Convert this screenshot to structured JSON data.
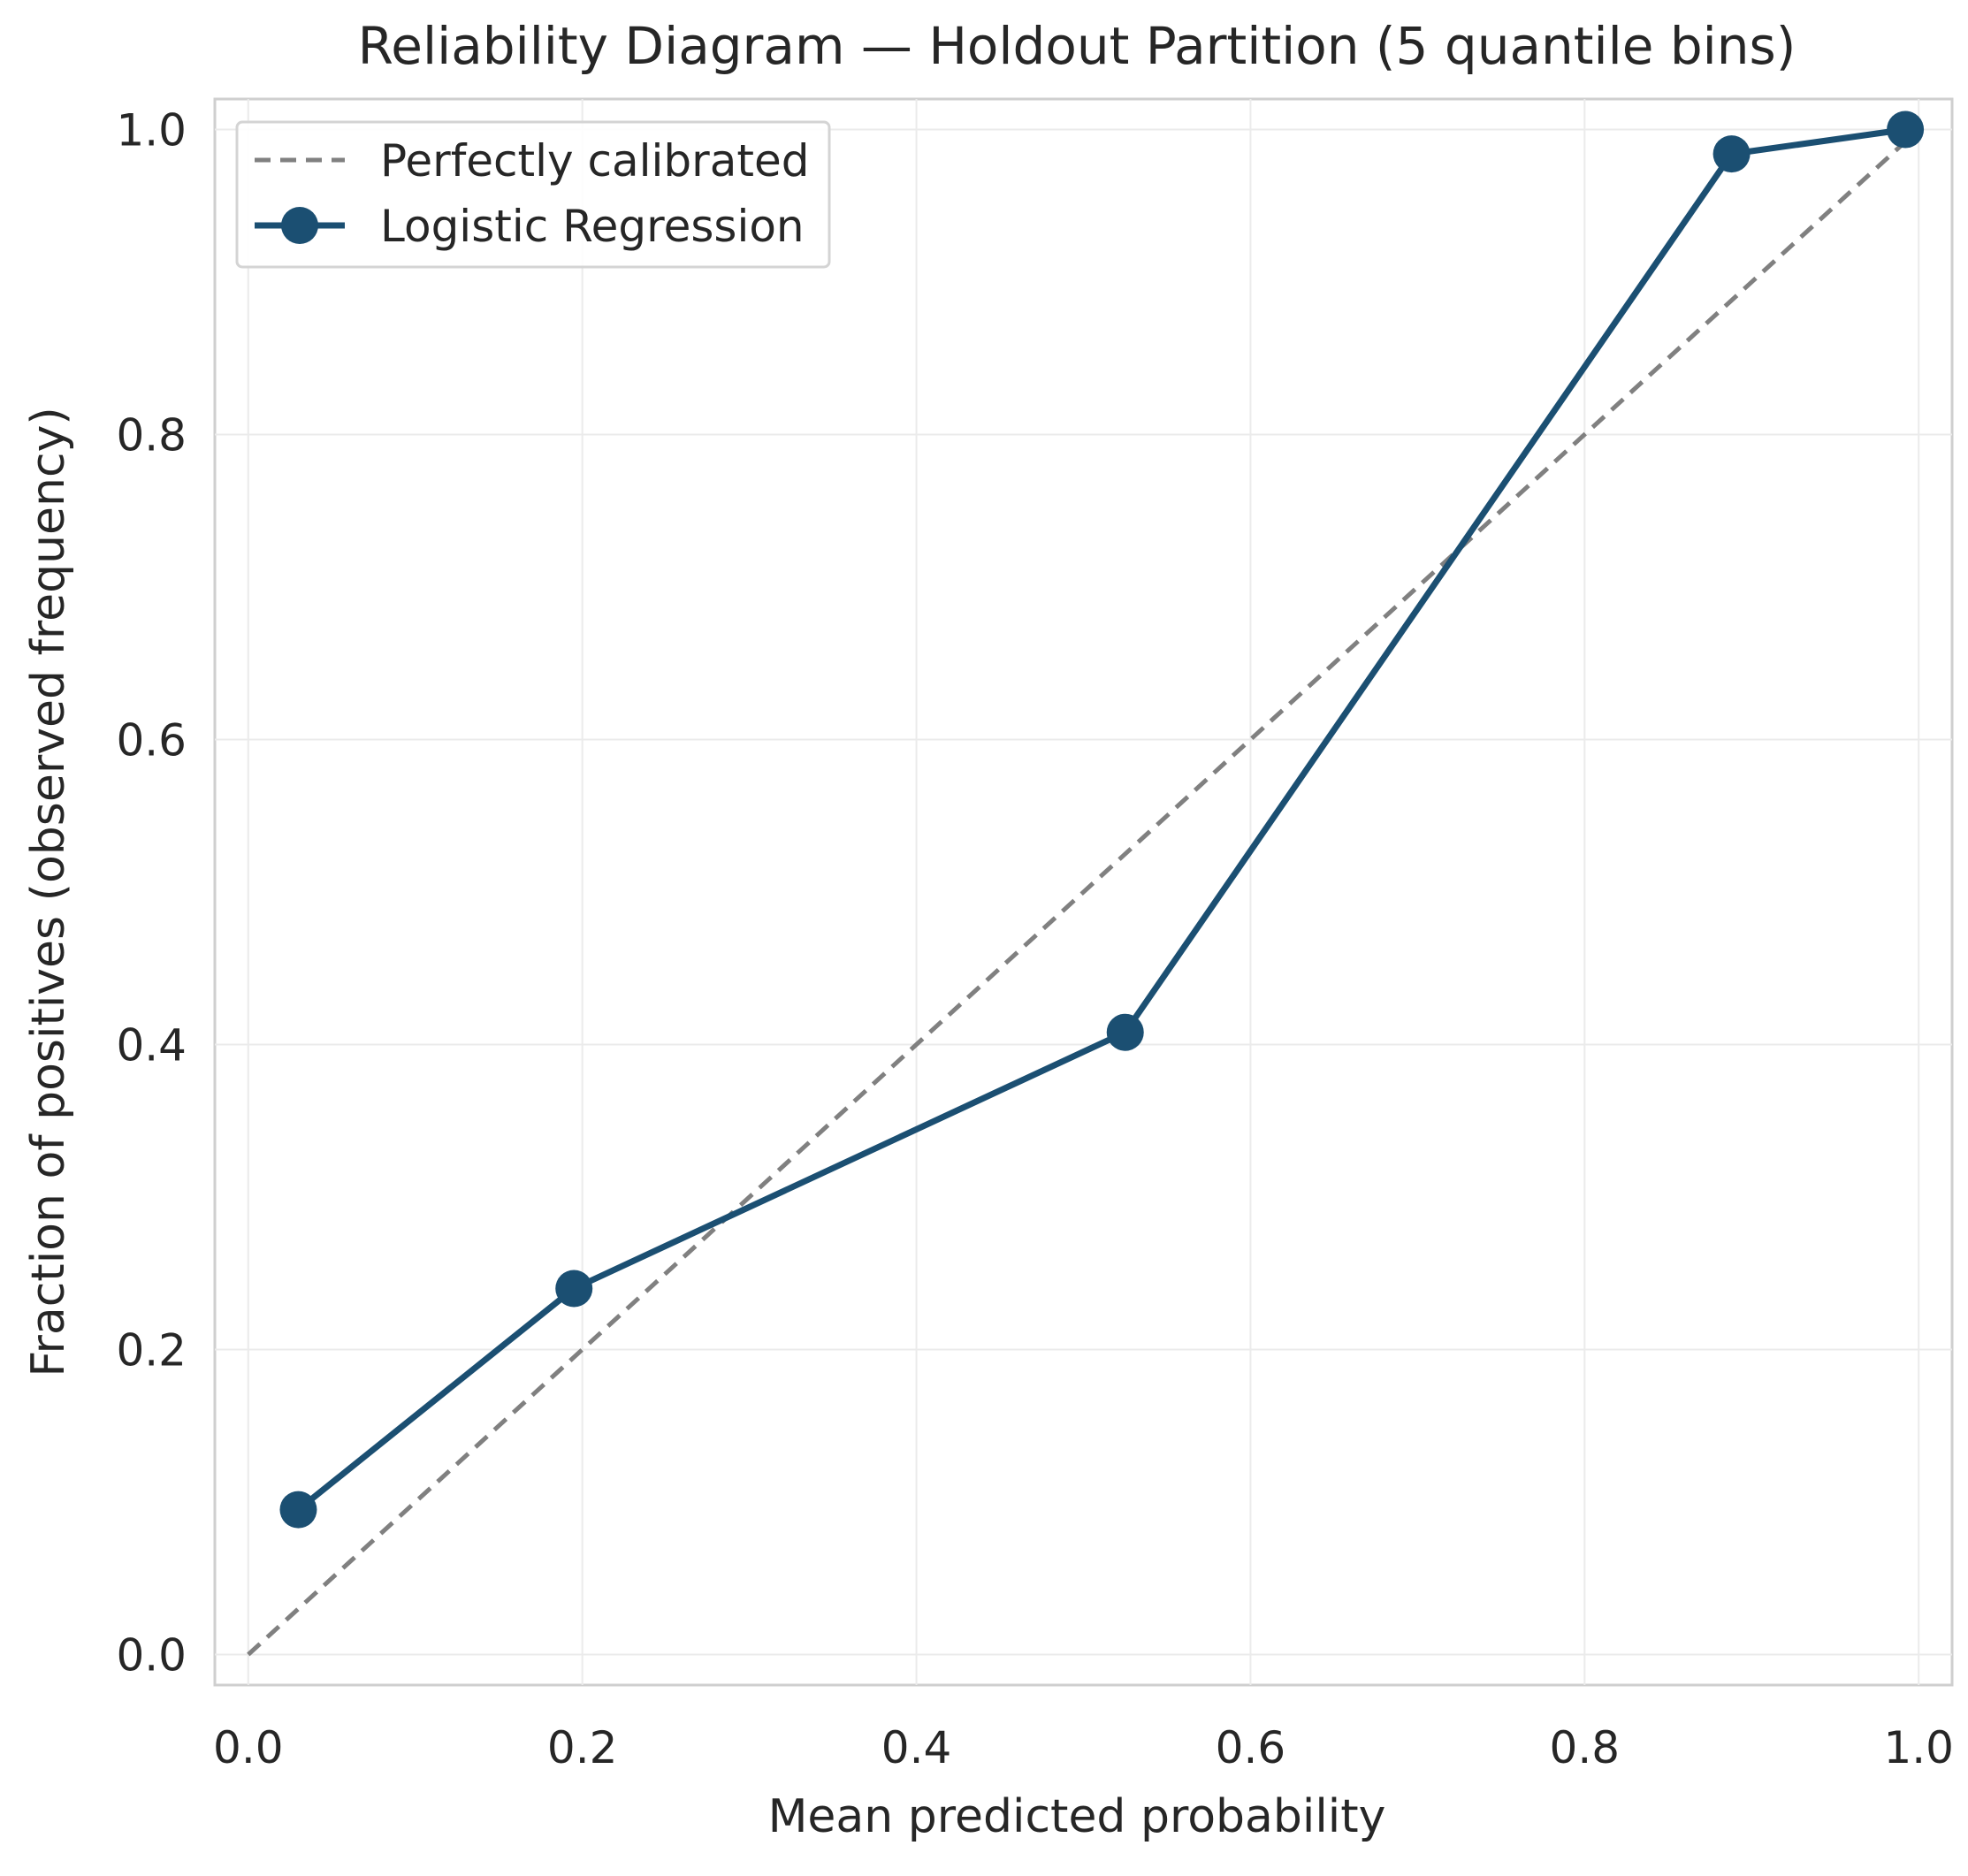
{
  "chart_data": {
    "type": "line",
    "title": "Reliability Diagram — Holdout Partition (5 quantile bins)",
    "xlabel": "Mean predicted probability",
    "ylabel": "Fraction of positives (observed frequency)",
    "xlim": [
      -0.02,
      1.02
    ],
    "ylim": [
      -0.02,
      1.02
    ],
    "xticks": [
      0.0,
      0.2,
      0.4,
      0.6,
      0.8,
      1.0
    ],
    "xtick_labels": [
      "0.0",
      "0.2",
      "0.4",
      "0.6",
      "0.8",
      "1.0"
    ],
    "yticks": [
      0.0,
      0.2,
      0.4,
      0.6,
      0.8,
      1.0
    ],
    "ytick_labels": [
      "0.0",
      "0.2",
      "0.4",
      "0.6",
      "0.8",
      "1.0"
    ],
    "grid": true,
    "legend_position": "upper left",
    "series": [
      {
        "name": "Perfectly calibrated",
        "style": "dashed",
        "color": "#808080",
        "x": [
          0.0,
          1.0
        ],
        "y": [
          0.0,
          1.0
        ]
      },
      {
        "name": "Logistic Regression",
        "style": "solid-marker",
        "color": "#1b4f72",
        "x": [
          0.03,
          0.195,
          0.525,
          0.888,
          0.992
        ],
        "y": [
          0.095,
          0.24,
          0.408,
          0.984,
          1.0
        ]
      }
    ]
  }
}
